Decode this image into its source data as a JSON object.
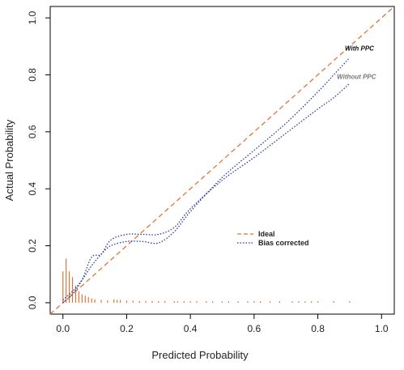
{
  "chart_data": {
    "type": "line",
    "xlabel": "Predicted Probability",
    "ylabel": "Actual Probability",
    "xlim": [
      -0.04,
      1.04
    ],
    "ylim": [
      -0.04,
      1.04
    ],
    "x_ticks": [
      0.0,
      0.2,
      0.4,
      0.6,
      0.8,
      1.0
    ],
    "x_tick_labels": [
      "0.0",
      "0.2",
      "0.4",
      "0.6",
      "0.8",
      "1.0"
    ],
    "y_ticks": [
      0.0,
      0.2,
      0.4,
      0.6,
      0.8,
      1.0
    ],
    "y_tick_labels": [
      "0.0",
      "0.2",
      "0.4",
      "0.6",
      "0.8",
      "1.0"
    ],
    "grid": false,
    "legend_position": "center-right",
    "legend": [
      {
        "label": "Ideal",
        "color": "#d9773a",
        "style": "dashed"
      },
      {
        "label": "Bias corrected",
        "color": "#2b3aa0",
        "style": "dotted"
      }
    ],
    "series": [
      {
        "name": "Ideal",
        "color": "#d9773a",
        "style": "dashed",
        "x": [
          -0.04,
          1.04
        ],
        "y": [
          -0.04,
          1.04
        ]
      },
      {
        "name": "With PPC",
        "color": "#2b3aa0",
        "style": "dotted",
        "x": [
          0.0,
          0.03,
          0.06,
          0.09,
          0.12,
          0.15,
          0.2,
          0.25,
          0.3,
          0.35,
          0.4,
          0.5,
          0.6,
          0.7,
          0.8,
          0.85,
          0.9
        ],
        "y": [
          0.01,
          0.04,
          0.08,
          0.13,
          0.17,
          0.2,
          0.215,
          0.215,
          0.21,
          0.25,
          0.32,
          0.44,
          0.535,
          0.63,
          0.74,
          0.8,
          0.86
        ]
      },
      {
        "name": "Without PPC",
        "color": "#2b3aa0",
        "style": "dotted",
        "x": [
          0.0,
          0.03,
          0.06,
          0.09,
          0.12,
          0.15,
          0.2,
          0.25,
          0.3,
          0.35,
          0.4,
          0.5,
          0.6,
          0.7,
          0.8,
          0.85,
          0.9
        ],
        "y": [
          0.0,
          0.03,
          0.08,
          0.16,
          0.17,
          0.22,
          0.24,
          0.24,
          0.24,
          0.265,
          0.33,
          0.43,
          0.51,
          0.595,
          0.68,
          0.72,
          0.77
        ]
      }
    ],
    "annotations": [
      {
        "text": "With PPC",
        "x": 0.885,
        "y": 0.885,
        "color": "#111111"
      },
      {
        "text": "Without PPC",
        "x": 0.86,
        "y": 0.785,
        "color": "#777777"
      }
    ],
    "histogram": {
      "color": "#d9773a",
      "x": [
        0.0,
        0.01,
        0.02,
        0.03,
        0.04,
        0.05,
        0.06,
        0.07,
        0.08,
        0.09,
        0.1,
        0.12,
        0.14,
        0.16,
        0.17,
        0.18,
        0.2,
        0.22,
        0.24,
        0.26,
        0.28,
        0.3,
        0.32,
        0.35,
        0.36,
        0.38,
        0.4,
        0.42,
        0.45,
        0.47,
        0.5,
        0.52,
        0.55,
        0.58,
        0.6,
        0.62,
        0.65,
        0.68,
        0.72,
        0.74,
        0.76,
        0.78,
        0.8,
        0.85,
        0.9
      ],
      "y": [
        0.11,
        0.155,
        0.11,
        0.09,
        0.06,
        0.04,
        0.03,
        0.025,
        0.02,
        0.015,
        0.012,
        0.01,
        0.008,
        0.012,
        0.01,
        0.01,
        0.008,
        0.007,
        0.006,
        0.006,
        0.006,
        0.005,
        0.006,
        0.005,
        0.005,
        0.005,
        0.005,
        0.005,
        0.005,
        0.005,
        0.005,
        0.005,
        0.005,
        0.005,
        0.005,
        0.005,
        0.005,
        0.005,
        0.005,
        0.005,
        0.005,
        0.005,
        0.005,
        0.005,
        0.005
      ]
    }
  }
}
